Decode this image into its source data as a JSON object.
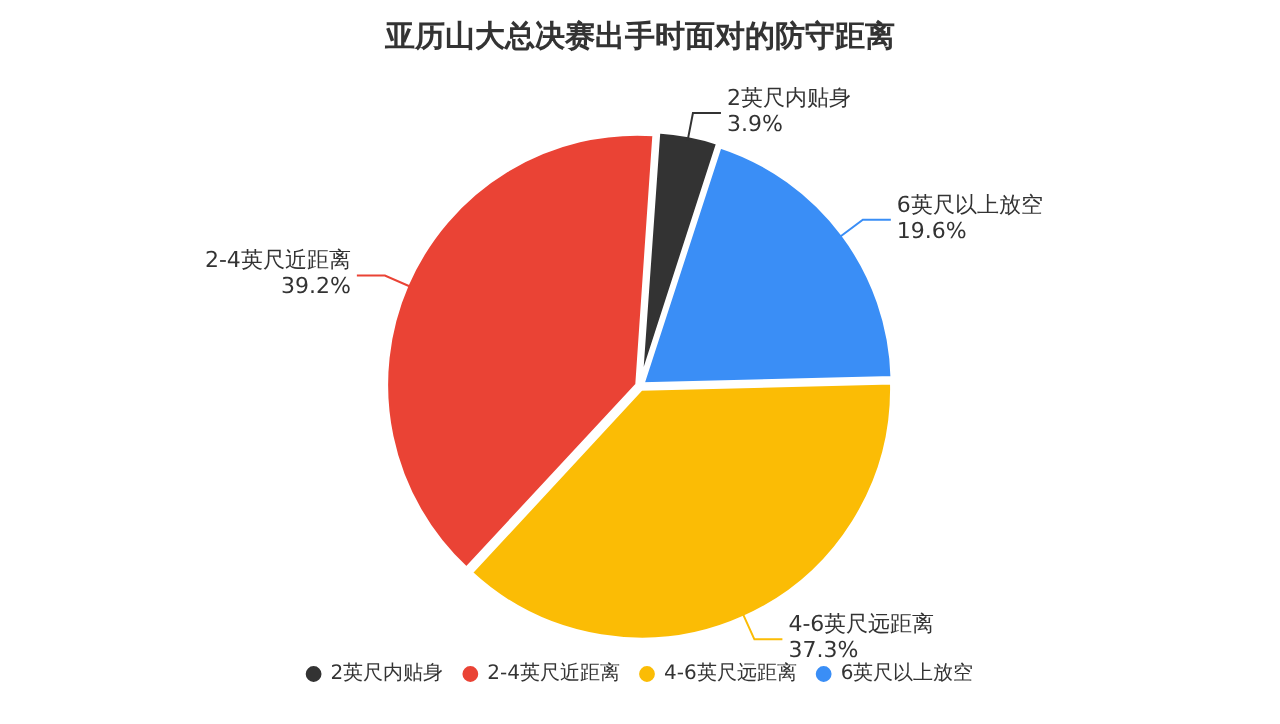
{
  "chart_data": {
    "type": "pie",
    "title": "亚历山大总决赛出手时面对的防守距离",
    "categories": [
      "2英尺内贴身",
      "2-4英尺近距离",
      "4-6英尺远距离",
      "6英尺以上放空"
    ],
    "values": [
      3.9,
      39.2,
      37.3,
      19.6
    ],
    "colors": [
      "#333333",
      "#ea4335",
      "#fbbc05",
      "#3a8ef6"
    ],
    "value_labels": [
      "3.9%",
      "39.2%",
      "37.3%",
      "19.6%"
    ],
    "legend": "bottom"
  }
}
